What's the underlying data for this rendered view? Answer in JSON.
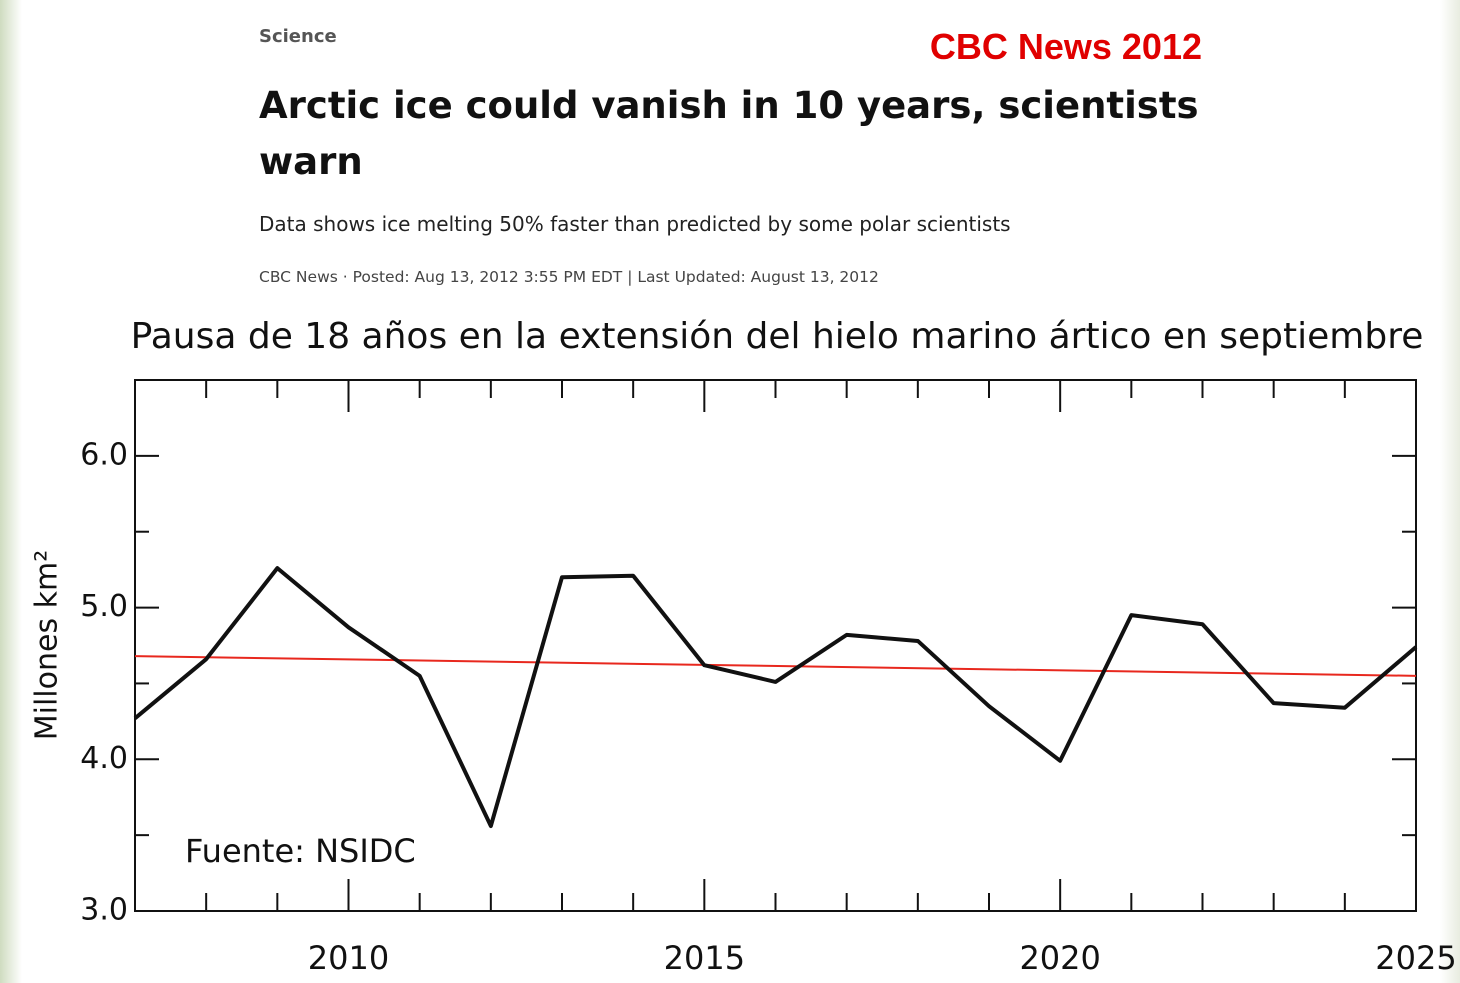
{
  "article": {
    "section": "Science",
    "source_tag": "CBC News 2012",
    "headline": "Arctic ice could vanish in 10 years, scientists warn",
    "subhead": "Data shows ice melting 50% faster than predicted by some polar scientists",
    "byline": "CBC News · Posted: Aug 13, 2012 3:55 PM EDT | Last Updated: August 13, 2012"
  },
  "chart_data": {
    "type": "line",
    "title": "Pausa de 18 años en la extensión del hielo marino ártico en septiembre",
    "y_label": "Millones km²",
    "annotation": "Fuente: NSIDC",
    "x": [
      2007,
      2008,
      2009,
      2010,
      2011,
      2012,
      2013,
      2014,
      2015,
      2016,
      2017,
      2018,
      2019,
      2020,
      2021,
      2022,
      2023,
      2024,
      2025
    ],
    "series": [
      {
        "color": "#111111",
        "values": [
          4.27,
          4.66,
          5.26,
          4.87,
          4.55,
          3.56,
          5.2,
          5.21,
          4.62,
          4.51,
          4.82,
          4.78,
          4.35,
          3.99,
          4.95,
          4.89,
          4.37,
          4.34,
          4.74
        ]
      }
    ],
    "trend": {
      "color": "#e8281e",
      "x": [
        2007,
        2025
      ],
      "values": [
        4.68,
        4.55
      ]
    },
    "xlim": [
      2007,
      2025
    ],
    "xticks": [
      2010,
      2015,
      2020,
      2025
    ],
    "xminor_ticks": [
      2008,
      2009,
      2011,
      2012,
      2013,
      2014,
      2016,
      2017,
      2018,
      2019,
      2021,
      2022,
      2023,
      2024
    ],
    "ylim": [
      3,
      6.5
    ],
    "yticks": [
      {
        "value": 3,
        "label": "3.0"
      },
      {
        "value": 4,
        "label": "4.0"
      },
      {
        "value": 5,
        "label": "5.0"
      },
      {
        "value": 6,
        "label": "6.0"
      }
    ],
    "yminor_ticks": [
      3.5,
      4.5,
      5.5
    ]
  }
}
